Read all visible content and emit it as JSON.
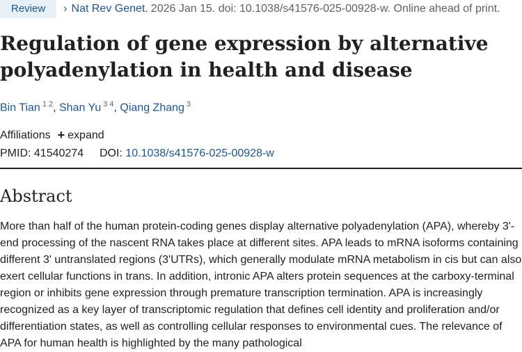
{
  "header": {
    "badge": "Review",
    "chevron_glyph": "›",
    "journal": "Nat Rev Genet.",
    "citation": "2026 Jan 15. doi: 10.1038/s41576-025-00928-w. Online ahead of print."
  },
  "title": "Regulation of gene expression by alternative polyadenylation in health and disease",
  "authors": [
    {
      "name": "Bin Tian",
      "affils": "1 2",
      "sep": ", "
    },
    {
      "name": "Shan Yu",
      "affils": "3 4",
      "sep": ", "
    },
    {
      "name": "Qiang Zhang",
      "affils": "3",
      "sep": ""
    }
  ],
  "affiliations": {
    "label": "Affiliations",
    "expand_icon": "plus-icon",
    "expand_label": "expand"
  },
  "ids": {
    "pmid_label": "PMID:",
    "pmid": "41540274",
    "doi_label": "DOI:",
    "doi": "10.1038/s41576-025-00928-w"
  },
  "abstract": {
    "heading": "Abstract",
    "text": "More than half of the human protein-coding genes display alternative polyadenylation (APA), whereby 3'-end processing of the nascent RNA takes place at different sites. APA leads to mRNA isoforms containing different 3' untranslated regions (3'UTRs), which generally modulate mRNA metabolism in cis but can also exert cellular functions in trans. In addition, intronic APA alters protein sequences at the carboxy-terminal region or inhibits gene expression through premature transcription termination. APA is increasingly recognized as a key layer of transcriptomic regulation that defines cell identity and proliferation and/or differentiation states, as well as controlling cellular responses to environmental cues. The relevance of APA for human health is highlighted by the many pathological"
  },
  "colors": {
    "link": "#20558a",
    "badge_bg": "#e8f0f8",
    "text": "#212121",
    "muted": "#5b616b"
  }
}
